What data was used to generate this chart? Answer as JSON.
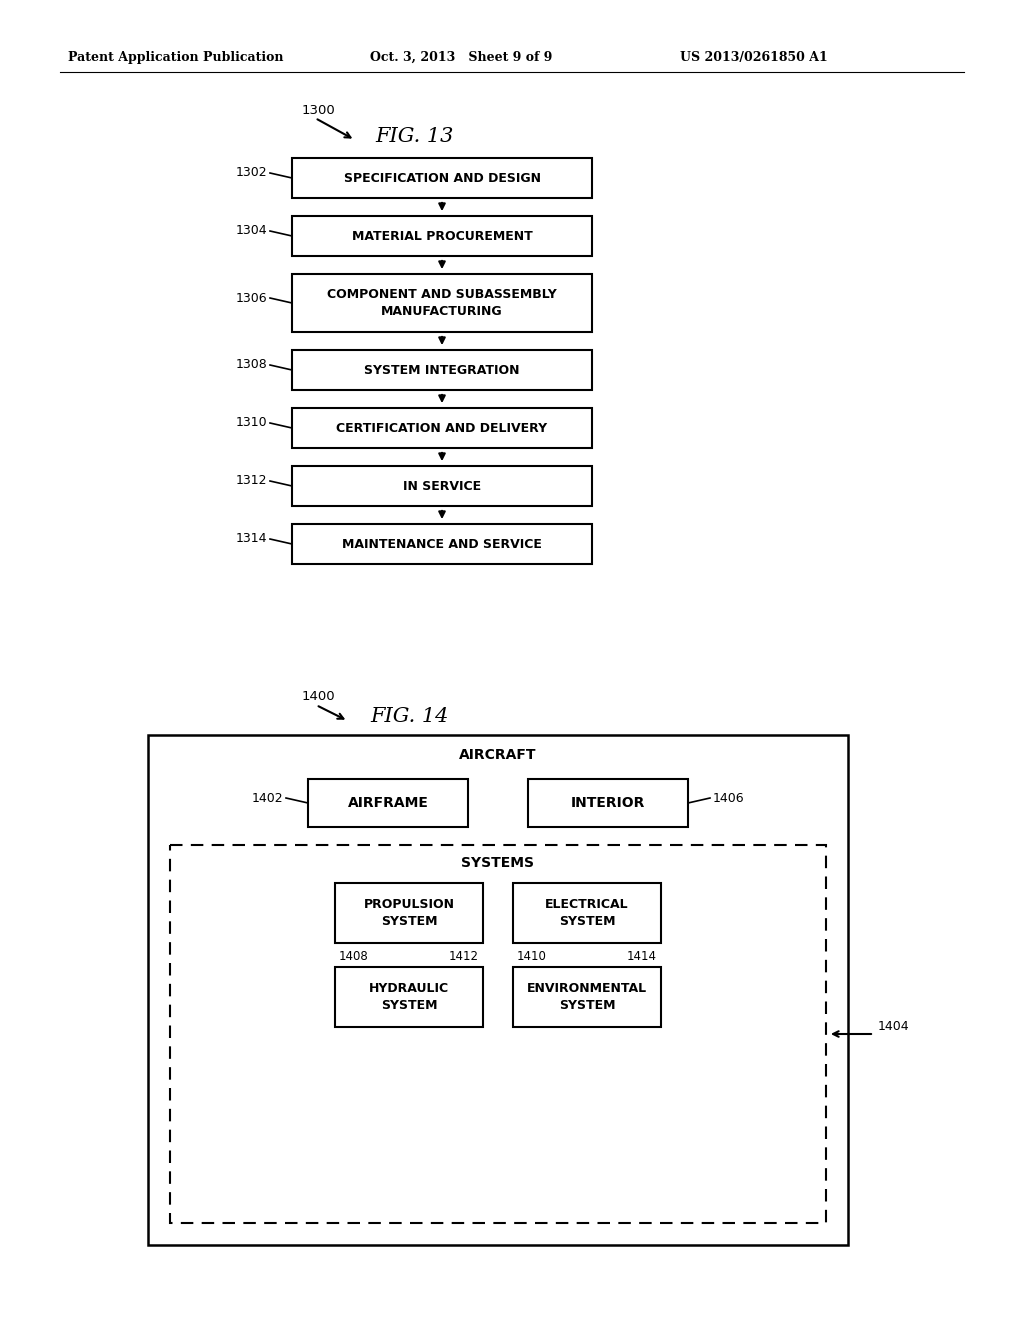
{
  "bg_color": "#ffffff",
  "header_left": "Patent Application Publication",
  "header_mid": "Oct. 3, 2013   Sheet 9 of 9",
  "header_right": "US 2013/0261850 A1",
  "fig13_title": "FIG. 13",
  "fig13_boxes": [
    {
      "label": "1302",
      "text": "SPECIFICATION AND DESIGN"
    },
    {
      "label": "1304",
      "text": "MATERIAL PROCUREMENT"
    },
    {
      "label": "1306",
      "text": "COMPONENT AND SUBASSEMBLY\nMANUFACTURING"
    },
    {
      "label": "1308",
      "text": "SYSTEM INTEGRATION"
    },
    {
      "label": "1310",
      "text": "CERTIFICATION AND DELIVERY"
    },
    {
      "label": "1312",
      "text": "IN SERVICE"
    },
    {
      "label": "1314",
      "text": "MAINTENANCE AND SERVICE"
    }
  ],
  "fig14_title": "FIG. 14",
  "fig14_outer_label": "AIRCRAFT",
  "airframe_label": "1402",
  "airframe_text": "AIRFRAME",
  "interior_label": "1406",
  "interior_text": "INTERIOR",
  "systems_text": "SYSTEMS",
  "systems_num": "1404",
  "prop_text": "PROPULSION\nSYSTEM",
  "prop_num": "1408",
  "elec_text": "ELECTRICAL\nSYSTEM",
  "elec_num": "1410",
  "hyd_text": "HYDRAULIC\nSYSTEM",
  "hyd_num": "1412",
  "env_text": "ENVIRONMENTAL\nSYSTEM",
  "env_num": "1414"
}
